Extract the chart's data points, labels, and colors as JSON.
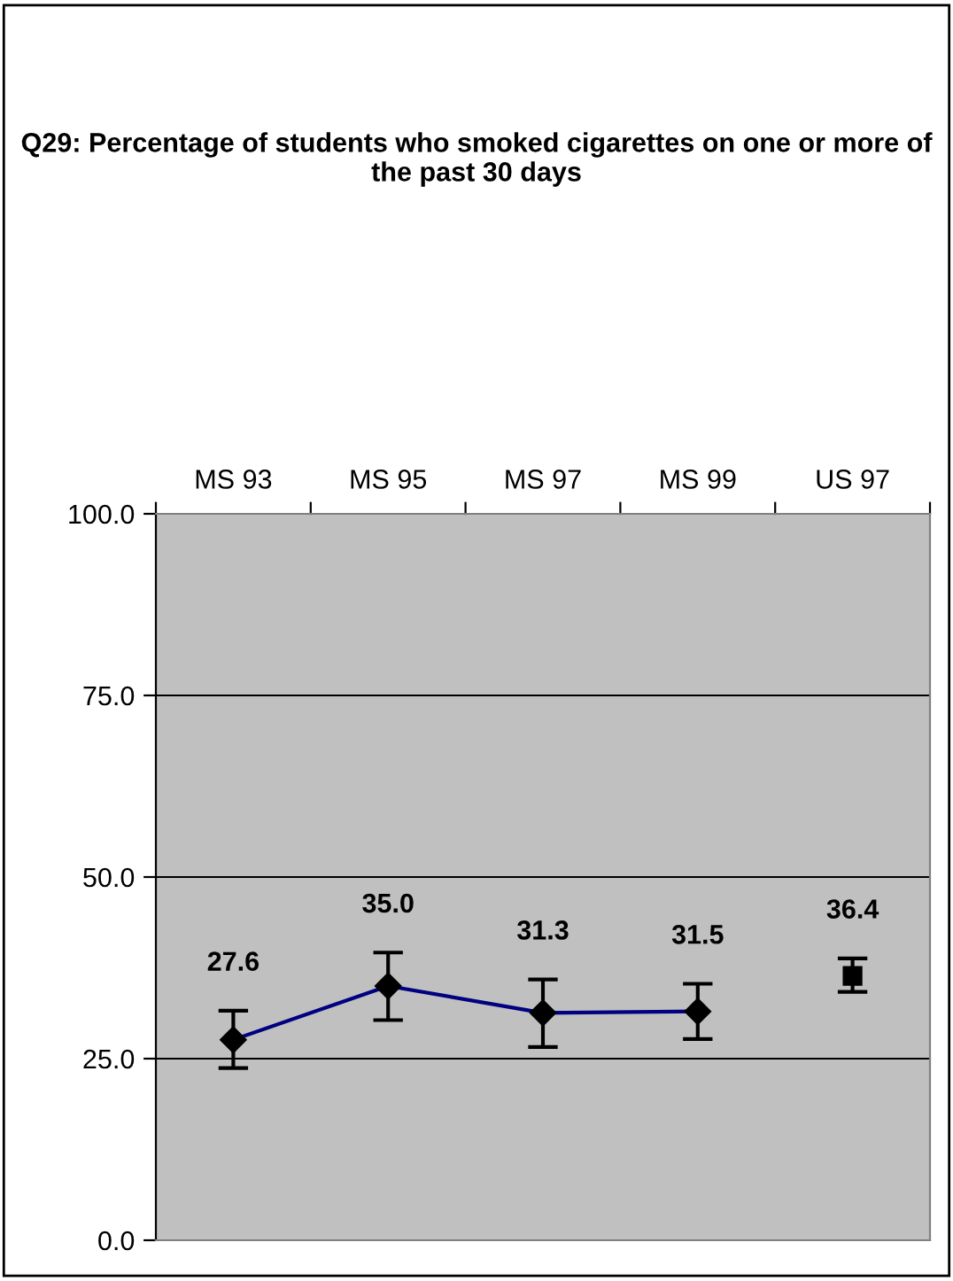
{
  "chart_data": {
    "type": "line",
    "title": "Q29: Percentage of students who smoked cigarettes on one or more of the past 30 days",
    "categories": [
      "MS 93",
      "MS 95",
      "MS 97",
      "MS 99",
      "US 97"
    ],
    "series": [
      {
        "color": "#000080",
        "marker": "diamond",
        "values": [
          27.6,
          35.0,
          31.3,
          31.5,
          null
        ],
        "value_labels": [
          "27.6",
          "35.0",
          "31.3",
          "31.5",
          null
        ],
        "errors": [
          [
            23.7,
            31.6
          ],
          [
            30.3,
            39.6
          ],
          [
            26.6,
            35.9
          ],
          [
            27.7,
            35.3
          ],
          null
        ]
      },
      {
        "type": "scatter",
        "color": "#000000",
        "marker": "square",
        "values": [
          null,
          null,
          null,
          null,
          36.4
        ],
        "value_labels": [
          null,
          null,
          null,
          null,
          "36.4"
        ],
        "errors": [
          null,
          null,
          null,
          null,
          [
            34.2,
            38.8
          ]
        ]
      }
    ],
    "ylim": [
      0,
      100
    ],
    "yticks": [
      {
        "value": 0,
        "label": "0.0"
      },
      {
        "value": 25,
        "label": "25.0"
      },
      {
        "value": 50,
        "label": "50.0"
      },
      {
        "value": 75,
        "label": "75.0"
      },
      {
        "value": 100,
        "label": "100.0"
      }
    ],
    "grid": "y"
  }
}
